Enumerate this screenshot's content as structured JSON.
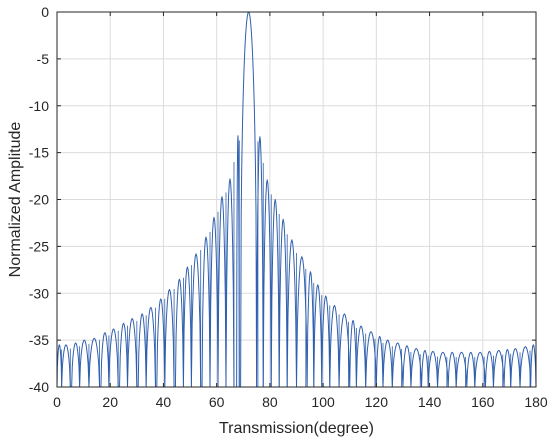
{
  "chart_data": {
    "type": "line",
    "title": "",
    "xlabel": "Transmission(degree)",
    "ylabel": "Normalized Amplitude",
    "xlim": [
      0,
      180
    ],
    "ylim": [
      -40,
      0
    ],
    "xticks": [
      0,
      20,
      40,
      60,
      80,
      100,
      120,
      140,
      160,
      180
    ],
    "yticks": [
      0,
      -5,
      -10,
      -15,
      -20,
      -25,
      -30,
      -35,
      -40
    ],
    "grid": true,
    "legend": "none",
    "line_color": "#2f5fae",
    "main_lobe_center": 72,
    "main_lobe_peak": 0,
    "sidelobe_peaks": {
      "x": [
        0.5,
        3,
        7,
        10,
        14,
        18,
        21,
        25,
        28,
        32,
        35,
        39,
        42,
        46,
        49,
        52,
        56,
        59,
        62,
        65,
        68,
        76,
        79,
        82,
        85,
        88,
        92,
        95,
        98,
        101,
        104,
        108,
        111,
        114,
        118,
        121,
        124,
        128,
        131,
        135,
        138,
        141,
        145,
        148,
        152,
        155,
        159,
        162,
        166,
        169,
        172,
        176,
        179.5
      ],
      "y": [
        -35.5,
        -35.5,
        -35.3,
        -35,
        -34.8,
        -34.2,
        -33.8,
        -33.2,
        -32.7,
        -32.2,
        -31.5,
        -30.6,
        -29.6,
        -28.5,
        -27.2,
        -25.8,
        -24,
        -21.9,
        -19.7,
        -17.8,
        -13.2,
        -13.3,
        -17.9,
        -20,
        -22.1,
        -24.3,
        -26.1,
        -27.7,
        -29.1,
        -30.3,
        -31.3,
        -32.2,
        -32.9,
        -33.5,
        -34.1,
        -34.6,
        -35,
        -35.3,
        -35.6,
        -35.9,
        -36.1,
        -36.2,
        -36.3,
        -36.3,
        -36.3,
        -36.3,
        -36.3,
        -36.2,
        -36.1,
        -36,
        -35.9,
        -35.7,
        -35.5
      ]
    },
    "floor_value": -40
  }
}
